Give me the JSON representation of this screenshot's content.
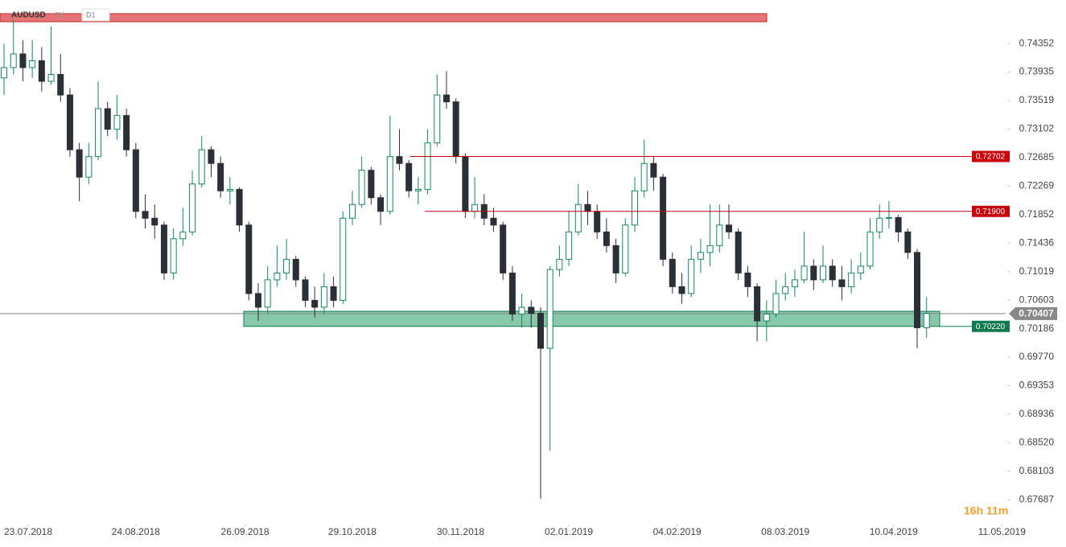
{
  "chart_data": {
    "type": "candlestick",
    "symbol": "AUDUSD",
    "market": "FX",
    "interval": "D1",
    "timer": "16h 11m",
    "up_color": "#17865a",
    "down_color": "#2b2f36",
    "xlim": [
      -0.43,
      106.4
    ],
    "ylim": [
      0.6735,
      0.7487
    ],
    "xticks": [
      {
        "value": 2.56,
        "label": "23.07.2018"
      },
      {
        "value": 14.0,
        "label": "24.08.2018"
      },
      {
        "value": 25.6,
        "label": "26.09.2018"
      },
      {
        "value": 37.0,
        "label": "29.10.2018"
      },
      {
        "value": 48.5,
        "label": "30.11.2018"
      },
      {
        "value": 60.0,
        "label": "02.01.2019"
      },
      {
        "value": 71.5,
        "label": "04.02.2019"
      },
      {
        "value": 83.0,
        "label": "08.03.2019"
      },
      {
        "value": 94.5,
        "label": "10.04.2019"
      },
      {
        "value": 106.0,
        "label": "11.05.2019"
      }
    ],
    "yticks": [
      0.74352,
      0.73935,
      0.73519,
      0.73102,
      0.72685,
      0.72269,
      0.71852,
      0.71436,
      0.71019,
      0.70603,
      0.70186,
      {
        "value": 0.6977,
        "label": "0.69770"
      },
      0.69353,
      0.68936,
      {
        "value": 0.6852,
        "label": "0.68520"
      },
      0.68103,
      0.67687
    ],
    "ohlc": [
      [
        0.7385,
        0.7435,
        0.736,
        0.74
      ],
      [
        0.74,
        0.747,
        0.739,
        0.742
      ],
      [
        0.742,
        0.744,
        0.738,
        0.74
      ],
      [
        0.74,
        0.744,
        0.7385,
        0.741
      ],
      [
        0.741,
        0.743,
        0.7365,
        0.738
      ],
      [
        0.738,
        0.746,
        0.7375,
        0.739
      ],
      [
        0.739,
        0.742,
        0.735,
        0.736
      ],
      [
        0.736,
        0.737,
        0.727,
        0.728
      ],
      [
        0.728,
        0.729,
        0.7205,
        0.724
      ],
      [
        0.724,
        0.729,
        0.723,
        0.727
      ],
      [
        0.727,
        0.738,
        0.7265,
        0.734
      ],
      [
        0.734,
        0.735,
        0.73,
        0.731
      ],
      [
        0.731,
        0.736,
        0.7295,
        0.733
      ],
      [
        0.733,
        0.734,
        0.727,
        0.728
      ],
      [
        0.728,
        0.729,
        0.718,
        0.719
      ],
      [
        0.719,
        0.7215,
        0.7165,
        0.718
      ],
      [
        0.718,
        0.72,
        0.715,
        0.717
      ],
      [
        0.717,
        0.7175,
        0.709,
        0.71
      ],
      [
        0.71,
        0.7165,
        0.709,
        0.715
      ],
      [
        0.715,
        0.7195,
        0.714,
        0.716
      ],
      [
        0.716,
        0.725,
        0.7155,
        0.723
      ],
      [
        0.723,
        0.73,
        0.7225,
        0.728
      ],
      [
        0.728,
        0.7285,
        0.724,
        0.726
      ],
      [
        0.726,
        0.727,
        0.721,
        0.722
      ],
      [
        0.722,
        0.724,
        0.72,
        0.7222
      ],
      [
        0.7222,
        0.7225,
        0.716,
        0.717
      ],
      [
        0.717,
        0.7175,
        0.706,
        0.707
      ],
      [
        0.707,
        0.7085,
        0.703,
        0.705
      ],
      [
        0.705,
        0.711,
        0.704,
        0.709
      ],
      [
        0.709,
        0.714,
        0.708,
        0.71
      ],
      [
        0.71,
        0.715,
        0.709,
        0.712
      ],
      [
        0.712,
        0.7125,
        0.708,
        0.709
      ],
      [
        0.709,
        0.7095,
        0.705,
        0.706
      ],
      [
        0.706,
        0.708,
        0.7035,
        0.705
      ],
      [
        0.705,
        0.71,
        0.704,
        0.708
      ],
      [
        0.708,
        0.7095,
        0.705,
        0.706
      ],
      [
        0.706,
        0.719,
        0.7055,
        0.718
      ],
      [
        0.718,
        0.722,
        0.717,
        0.72
      ],
      [
        0.72,
        0.727,
        0.7195,
        0.725
      ],
      [
        0.725,
        0.7255,
        0.72,
        0.721
      ],
      [
        0.721,
        0.7215,
        0.717,
        0.719
      ],
      [
        0.719,
        0.733,
        0.7185,
        0.727
      ],
      [
        0.727,
        0.731,
        0.725,
        0.726
      ],
      [
        0.726,
        0.7265,
        0.721,
        0.722
      ],
      [
        0.722,
        0.724,
        0.72,
        0.7222
      ],
      [
        0.7222,
        0.731,
        0.7215,
        0.729
      ],
      [
        0.729,
        0.739,
        0.7285,
        0.736
      ],
      [
        0.736,
        0.7395,
        0.734,
        0.735
      ],
      [
        0.735,
        0.7355,
        0.726,
        0.727
      ],
      [
        0.727,
        0.7275,
        0.718,
        0.719
      ],
      [
        0.719,
        0.724,
        0.718,
        0.72
      ],
      [
        0.72,
        0.7215,
        0.717,
        0.718
      ],
      [
        0.718,
        0.7195,
        0.716,
        0.717
      ],
      [
        0.717,
        0.7175,
        0.709,
        0.71
      ],
      [
        0.71,
        0.711,
        0.703,
        0.704
      ],
      [
        0.704,
        0.707,
        0.702,
        0.705
      ],
      [
        0.705,
        0.706,
        0.702,
        0.7041
      ],
      [
        0.7041,
        0.705,
        0.677,
        0.699
      ],
      [
        0.699,
        0.711,
        0.684,
        0.7105
      ],
      [
        0.7105,
        0.714,
        0.7095,
        0.712
      ],
      [
        0.712,
        0.719,
        0.711,
        0.716
      ],
      [
        0.716,
        0.723,
        0.7155,
        0.72
      ],
      [
        0.72,
        0.722,
        0.717,
        0.719
      ],
      [
        0.719,
        0.72,
        0.715,
        0.716
      ],
      [
        0.716,
        0.718,
        0.713,
        0.714
      ],
      [
        0.714,
        0.715,
        0.7085,
        0.71
      ],
      [
        0.71,
        0.718,
        0.7095,
        0.717
      ],
      [
        0.717,
        0.724,
        0.716,
        0.722
      ],
      [
        0.722,
        0.7295,
        0.721,
        0.726
      ],
      [
        0.726,
        0.727,
        0.722,
        0.724
      ],
      [
        0.724,
        0.7245,
        0.711,
        0.712
      ],
      [
        0.712,
        0.713,
        0.707,
        0.708
      ],
      [
        0.708,
        0.71,
        0.7055,
        0.707
      ],
      [
        0.707,
        0.714,
        0.7065,
        0.712
      ],
      [
        0.712,
        0.715,
        0.71,
        0.713
      ],
      [
        0.713,
        0.72,
        0.711,
        0.714
      ],
      [
        0.714,
        0.72,
        0.713,
        0.717
      ],
      [
        0.717,
        0.72,
        0.715,
        0.716
      ],
      [
        0.716,
        0.7165,
        0.709,
        0.71
      ],
      [
        0.71,
        0.711,
        0.7065,
        0.708
      ],
      [
        0.708,
        0.7085,
        0.7,
        0.703
      ],
      [
        0.703,
        0.706,
        0.7,
        0.704
      ],
      [
        0.704,
        0.709,
        0.7035,
        0.707
      ],
      [
        0.707,
        0.71,
        0.706,
        0.708
      ],
      [
        0.708,
        0.7105,
        0.7065,
        0.709
      ],
      [
        0.709,
        0.716,
        0.7085,
        0.711
      ],
      [
        0.711,
        0.712,
        0.7075,
        0.709
      ],
      [
        0.709,
        0.714,
        0.7085,
        0.711
      ],
      [
        0.711,
        0.712,
        0.708,
        0.709
      ],
      [
        0.709,
        0.711,
        0.706,
        0.708
      ],
      [
        0.708,
        0.712,
        0.707,
        0.71
      ],
      [
        0.71,
        0.713,
        0.709,
        0.711
      ],
      [
        0.711,
        0.718,
        0.7105,
        0.716
      ],
      [
        0.716,
        0.72,
        0.715,
        0.718
      ],
      [
        0.718,
        0.7205,
        0.7165,
        0.7181
      ],
      [
        0.7181,
        0.7185,
        0.7145,
        0.716
      ],
      [
        0.716,
        0.7165,
        0.712,
        0.713
      ],
      [
        0.713,
        0.7135,
        0.699,
        0.702
      ],
      [
        0.702,
        0.7065,
        0.7005,
        0.7041
      ]
    ],
    "levels": [
      {
        "price": 0.72702,
        "color": "#c8000a"
      },
      {
        "price": {
          "value": 0.719,
          "label": "0.71900"
        },
        "color": "#c8000a"
      },
      {
        "price": {
          "value": 0.7022,
          "label": "0.70220"
        },
        "color": "#0e7a4e"
      }
    ],
    "zone": {
      "low": 0.7022,
      "high": 0.7044,
      "color": "#5fb58f"
    },
    "last_price": 0.70407
  }
}
